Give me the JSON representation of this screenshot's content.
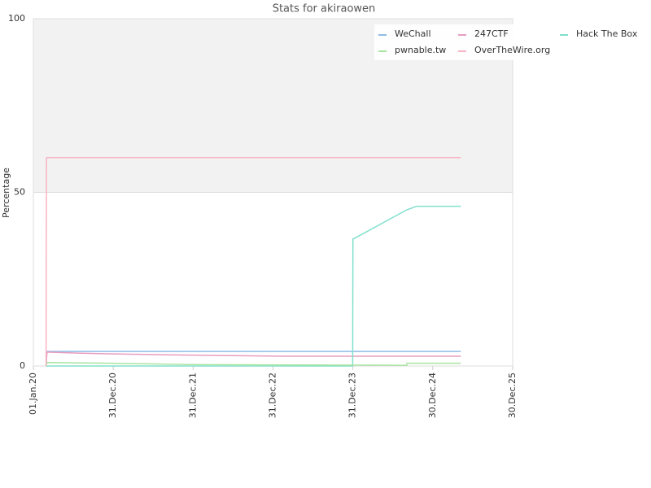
{
  "chart_data": {
    "type": "line",
    "title": "Stats for akiraowen",
    "y_label": "Percentage",
    "xlim": [
      "2020-01-01",
      "2025-12-30"
    ],
    "xticks": [
      {
        "value": "2020-01-01",
        "label": "01.Jan.20"
      },
      {
        "value": "2020-12-31",
        "label": "31.Dec.20"
      },
      {
        "value": "2021-12-31",
        "label": "31.Dec.21"
      },
      {
        "value": "2022-12-31",
        "label": "31.Dec.22"
      },
      {
        "value": "2023-12-31",
        "label": "31.Dec.23"
      },
      {
        "value": "2024-12-30",
        "label": "30.Dec.24"
      },
      {
        "value": "2025-12-30",
        "label": "30.Dec.25"
      }
    ],
    "ylim": [
      0,
      100
    ],
    "yticks": [
      0,
      50,
      100
    ],
    "grid": true,
    "legend": "top-right",
    "series": [
      {
        "name": "WeChall",
        "color": "#8fbce6",
        "x": [
          "2020-02-28",
          "2020-03-03",
          "2025-05-07"
        ],
        "values": [
          0,
          4.2,
          4.2
        ]
      },
      {
        "name": "247CTF",
        "color": "#e89cc0",
        "x": [
          "2020-02-28",
          "2020-03-03",
          "2020-08-01",
          "2021-01-01",
          "2021-09-01",
          "2022-07-01",
          "2023-03-01",
          "2025-05-07"
        ],
        "values": [
          0,
          4,
          3.7,
          3.5,
          3.2,
          3,
          2.8,
          2.8
        ]
      },
      {
        "name": "Hack The Box",
        "color": "#80e0cc",
        "x": [
          "2020-02-28",
          "2023-12-30",
          "2023-12-31",
          "2024-09-03",
          "2024-10-18",
          "2025-05-07"
        ],
        "values": [
          0,
          0,
          36.5,
          45,
          46,
          46
        ]
      },
      {
        "name": "pwnable.tw",
        "color": "#a8e4a0",
        "x": [
          "2020-02-28",
          "2020-03-03",
          "2020-12-31",
          "2022-01-01",
          "2024-09-02",
          "2024-09-03",
          "2025-05-07"
        ],
        "values": [
          0,
          1,
          0.8,
          0.4,
          0.2,
          0.8,
          0.8
        ]
      },
      {
        "name": "OverTheWire.org",
        "color": "#f8b4c4",
        "x": [
          "2020-02-28",
          "2020-03-01",
          "2025-05-07"
        ],
        "values": [
          0,
          60,
          60
        ]
      }
    ]
  }
}
